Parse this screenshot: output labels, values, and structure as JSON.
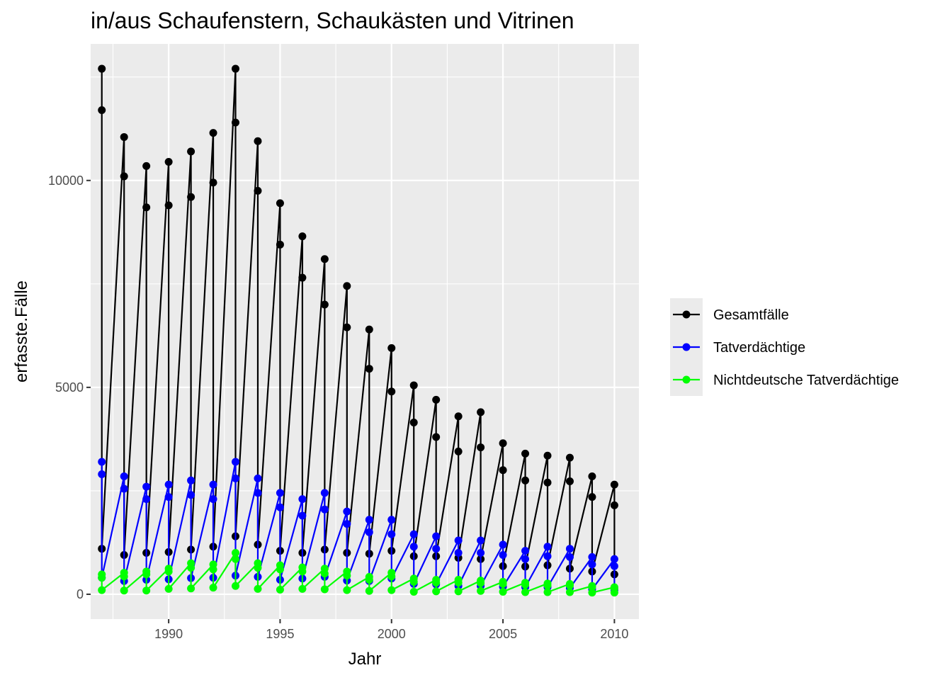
{
  "chart_data": {
    "type": "line",
    "title": "in/aus Schaufenstern, Schaukästen und Vitrinen",
    "xlabel": "Jahr",
    "ylabel": "erfasste.Fälle",
    "xlim": [
      1986.5,
      2011.1
    ],
    "ylim": [
      -600,
      13300
    ],
    "x_ticks": [
      1990,
      1995,
      2000,
      2005,
      2010
    ],
    "x_tick_labels": [
      "1990",
      "1995",
      "2000",
      "2005",
      "2010"
    ],
    "y_ticks": [
      0,
      5000,
      10000
    ],
    "y_tick_labels": [
      "0",
      "5000",
      "10000"
    ],
    "grid": true,
    "legend_position": "right",
    "series": [
      {
        "name": "Gesamtfälle",
        "color": "#000000",
        "points": [
          [
            1987,
            12700
          ],
          [
            1987,
            11700
          ],
          [
            1987,
            1100
          ],
          [
            1988,
            11050
          ],
          [
            1988,
            10100
          ],
          [
            1988,
            950
          ],
          [
            1989,
            10350
          ],
          [
            1989,
            9350
          ],
          [
            1989,
            1000
          ],
          [
            1990,
            10450
          ],
          [
            1990,
            9400
          ],
          [
            1990,
            1020
          ],
          [
            1991,
            10700
          ],
          [
            1991,
            9600
          ],
          [
            1991,
            1080
          ],
          [
            1992,
            11150
          ],
          [
            1992,
            9950
          ],
          [
            1992,
            1150
          ],
          [
            1993,
            12700
          ],
          [
            1993,
            11400
          ],
          [
            1993,
            1400
          ],
          [
            1994,
            10950
          ],
          [
            1994,
            9750
          ],
          [
            1994,
            1200
          ],
          [
            1995,
            9450
          ],
          [
            1995,
            8450
          ],
          [
            1995,
            1050
          ],
          [
            1996,
            8650
          ],
          [
            1996,
            7650
          ],
          [
            1996,
            1000
          ],
          [
            1997,
            8100
          ],
          [
            1997,
            7000
          ],
          [
            1997,
            1080
          ],
          [
            1998,
            7450
          ],
          [
            1998,
            6450
          ],
          [
            1998,
            1000
          ],
          [
            1999,
            6400
          ],
          [
            1999,
            5450
          ],
          [
            1999,
            980
          ],
          [
            2000,
            5950
          ],
          [
            2000,
            4900
          ],
          [
            2000,
            1050
          ],
          [
            2001,
            5050
          ],
          [
            2001,
            4150
          ],
          [
            2001,
            920
          ],
          [
            2002,
            4700
          ],
          [
            2002,
            3800
          ],
          [
            2002,
            920
          ],
          [
            2003,
            4300
          ],
          [
            2003,
            3450
          ],
          [
            2003,
            880
          ],
          [
            2004,
            4400
          ],
          [
            2004,
            3550
          ],
          [
            2004,
            850
          ],
          [
            2005,
            3650
          ],
          [
            2005,
            3000
          ],
          [
            2005,
            680
          ],
          [
            2006,
            3400
          ],
          [
            2006,
            2750
          ],
          [
            2006,
            670
          ],
          [
            2007,
            3350
          ],
          [
            2007,
            2700
          ],
          [
            2007,
            700
          ],
          [
            2008,
            3300
          ],
          [
            2008,
            2730
          ],
          [
            2008,
            620
          ],
          [
            2009,
            2850
          ],
          [
            2009,
            2350
          ],
          [
            2009,
            550
          ],
          [
            2010,
            2650
          ],
          [
            2010,
            2150
          ],
          [
            2010,
            480
          ]
        ]
      },
      {
        "name": "Tatverdächtige",
        "color": "#0000ff",
        "points": [
          [
            1987,
            3200
          ],
          [
            1987,
            2900
          ],
          [
            1987,
            400
          ],
          [
            1988,
            2850
          ],
          [
            1988,
            2550
          ],
          [
            1988,
            320
          ],
          [
            1989,
            2600
          ],
          [
            1989,
            2300
          ],
          [
            1989,
            350
          ],
          [
            1990,
            2650
          ],
          [
            1990,
            2350
          ],
          [
            1990,
            360
          ],
          [
            1991,
            2750
          ],
          [
            1991,
            2400
          ],
          [
            1991,
            390
          ],
          [
            1992,
            2650
          ],
          [
            1992,
            2300
          ],
          [
            1992,
            400
          ],
          [
            1993,
            3200
          ],
          [
            1993,
            2800
          ],
          [
            1993,
            450
          ],
          [
            1994,
            2800
          ],
          [
            1994,
            2450
          ],
          [
            1994,
            420
          ],
          [
            1995,
            2450
          ],
          [
            1995,
            2100
          ],
          [
            1995,
            350
          ],
          [
            1996,
            2300
          ],
          [
            1996,
            1900
          ],
          [
            1996,
            380
          ],
          [
            1997,
            2450
          ],
          [
            1997,
            2050
          ],
          [
            1997,
            420
          ],
          [
            1998,
            2000
          ],
          [
            1998,
            1700
          ],
          [
            1998,
            330
          ],
          [
            1999,
            1800
          ],
          [
            1999,
            1500
          ],
          [
            1999,
            320
          ],
          [
            2000,
            1800
          ],
          [
            2000,
            1450
          ],
          [
            2000,
            380
          ],
          [
            2001,
            1450
          ],
          [
            2001,
            1150
          ],
          [
            2001,
            250
          ],
          [
            2002,
            1400
          ],
          [
            2002,
            1100
          ],
          [
            2002,
            240
          ],
          [
            2003,
            1300
          ],
          [
            2003,
            1000
          ],
          [
            2003,
            200
          ],
          [
            2004,
            1300
          ],
          [
            2004,
            1000
          ],
          [
            2004,
            200
          ],
          [
            2005,
            1200
          ],
          [
            2005,
            950
          ],
          [
            2005,
            180
          ],
          [
            2006,
            1050
          ],
          [
            2006,
            850
          ],
          [
            2006,
            170
          ],
          [
            2007,
            1150
          ],
          [
            2007,
            920
          ],
          [
            2007,
            170
          ],
          [
            2008,
            1100
          ],
          [
            2008,
            900
          ],
          [
            2008,
            150
          ],
          [
            2009,
            900
          ],
          [
            2009,
            720
          ],
          [
            2009,
            120
          ],
          [
            2010,
            850
          ],
          [
            2010,
            680
          ],
          [
            2010,
            100
          ]
        ]
      },
      {
        "name": "Nichtdeutsche Tatverdächtige",
        "color": "#00ff00",
        "points": [
          [
            1987,
            480
          ],
          [
            1987,
            400
          ],
          [
            1987,
            100
          ],
          [
            1988,
            520
          ],
          [
            1988,
            430
          ],
          [
            1988,
            90
          ],
          [
            1989,
            550
          ],
          [
            1989,
            480
          ],
          [
            1989,
            90
          ],
          [
            1990,
            620
          ],
          [
            1990,
            550
          ],
          [
            1990,
            130
          ],
          [
            1991,
            750
          ],
          [
            1991,
            640
          ],
          [
            1991,
            140
          ],
          [
            1992,
            720
          ],
          [
            1992,
            600
          ],
          [
            1992,
            160
          ],
          [
            1993,
            1000
          ],
          [
            1993,
            850
          ],
          [
            1993,
            200
          ],
          [
            1994,
            750
          ],
          [
            1994,
            640
          ],
          [
            1994,
            130
          ],
          [
            1995,
            700
          ],
          [
            1995,
            600
          ],
          [
            1995,
            110
          ],
          [
            1996,
            650
          ],
          [
            1996,
            550
          ],
          [
            1996,
            130
          ],
          [
            1997,
            620
          ],
          [
            1997,
            500
          ],
          [
            1997,
            120
          ],
          [
            1998,
            550
          ],
          [
            1998,
            450
          ],
          [
            1998,
            100
          ],
          [
            1999,
            420
          ],
          [
            1999,
            350
          ],
          [
            1999,
            80
          ],
          [
            2000,
            520
          ],
          [
            2000,
            430
          ],
          [
            2000,
            100
          ],
          [
            2001,
            380
          ],
          [
            2001,
            300
          ],
          [
            2001,
            60
          ],
          [
            2002,
            350
          ],
          [
            2002,
            280
          ],
          [
            2002,
            70
          ],
          [
            2003,
            350
          ],
          [
            2003,
            280
          ],
          [
            2003,
            70
          ],
          [
            2004,
            330
          ],
          [
            2004,
            270
          ],
          [
            2004,
            80
          ],
          [
            2005,
            300
          ],
          [
            2005,
            250
          ],
          [
            2005,
            60
          ],
          [
            2006,
            280
          ],
          [
            2006,
            230
          ],
          [
            2006,
            50
          ],
          [
            2007,
            260
          ],
          [
            2007,
            210
          ],
          [
            2007,
            50
          ],
          [
            2008,
            250
          ],
          [
            2008,
            210
          ],
          [
            2008,
            50
          ],
          [
            2009,
            200
          ],
          [
            2009,
            170
          ],
          [
            2009,
            40
          ],
          [
            2010,
            170
          ],
          [
            2010,
            140
          ],
          [
            2010,
            40
          ]
        ]
      }
    ]
  },
  "colors": {
    "panel_background": "#ebebeb",
    "grid_line": "#ffffff",
    "legend_key_background": "#ebebeb"
  }
}
